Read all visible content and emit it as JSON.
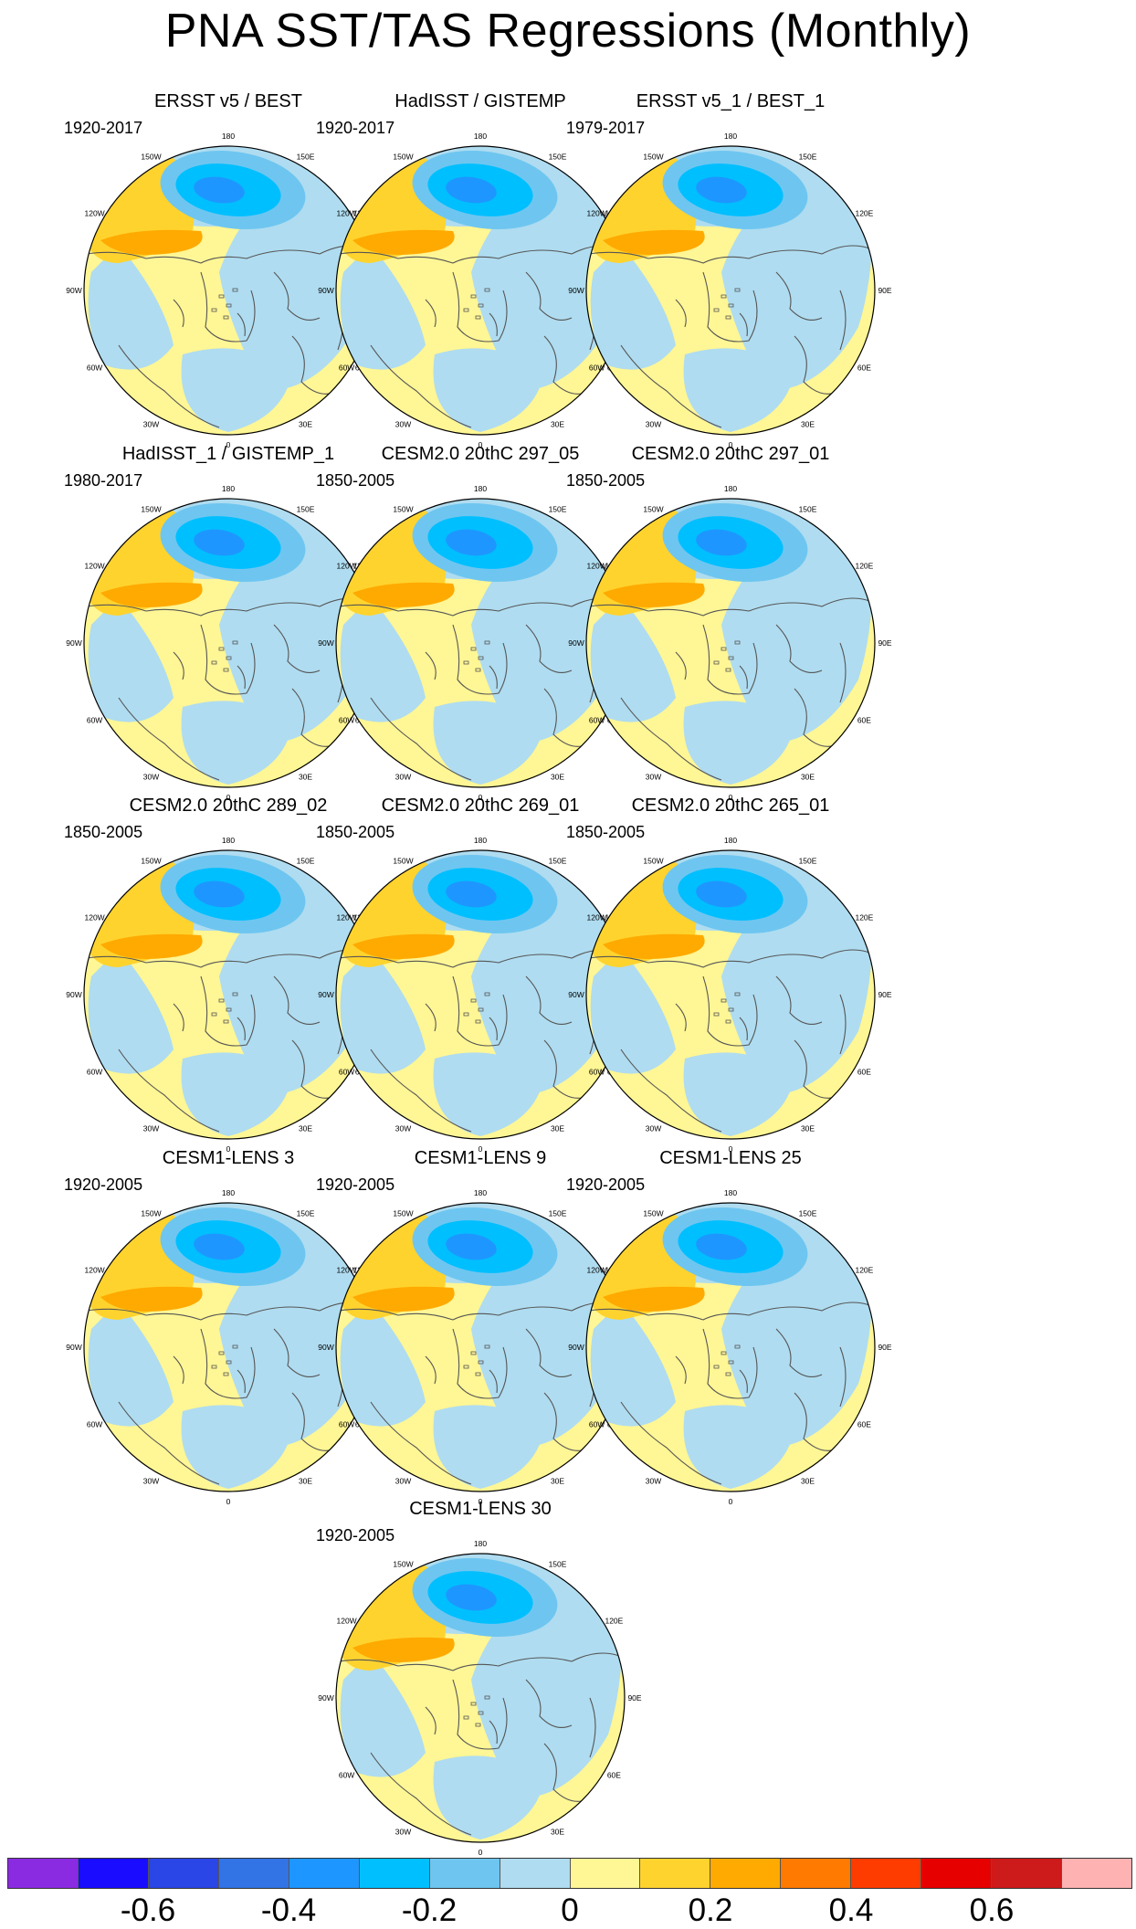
{
  "title": "PNA SST/TAS Regressions (Monthly)",
  "legend_note": "Each panel has the same ocean shading pattern; panel-specific pattern details are not encoded as data.",
  "map_labels": {
    "longitudes": [
      "180",
      "150E",
      "120E",
      "90E",
      "60E",
      "30E",
      "0",
      "30W",
      "60W",
      "90W",
      "120W",
      "150W"
    ]
  },
  "panels": [
    {
      "title": "ERSST v5 / BEST",
      "period": "1920-2017"
    },
    {
      "title": "HadISST / GISTEMP",
      "period": "1920-2017"
    },
    {
      "title": "ERSST v5_1 / BEST_1",
      "period": "1979-2017"
    },
    {
      "title": "HadISST_1 / GISTEMP_1",
      "period": "1980-2017"
    },
    {
      "title": "CESM2.0 20thC 297_05",
      "period": "1850-2005"
    },
    {
      "title": "CESM2.0 20thC 297_01",
      "period": "1850-2005"
    },
    {
      "title": "CESM2.0 20thC 289_02",
      "period": "1850-2005"
    },
    {
      "title": "CESM2.0 20thC 269_01",
      "period": "1850-2005"
    },
    {
      "title": "CESM2.0 20thC 265_01",
      "period": "1850-2005"
    },
    {
      "title": "CESM1-LENS 3",
      "period": "1920-2005"
    },
    {
      "title": "CESM1-LENS 9",
      "period": "1920-2005"
    },
    {
      "title": "CESM1-LENS 25",
      "period": "1920-2005"
    },
    {
      "title": "CESM1-LENS 30",
      "period": "1920-2005"
    }
  ],
  "colorbar": {
    "colors": [
      "#8a2be2",
      "#1a0dff",
      "#2a46e6",
      "#3273e6",
      "#1e96ff",
      "#00bfff",
      "#6ec6f0",
      "#afdcf0",
      "#fff695",
      "#ffd32e",
      "#ffaa00",
      "#ff7a00",
      "#ff3c00",
      "#e60000",
      "#cd1a1a",
      "#ffb2b2"
    ],
    "labels": [
      "-0.6",
      "-0.4",
      "-0.2",
      "0",
      "0.2",
      "0.4",
      "0.6"
    ]
  }
}
